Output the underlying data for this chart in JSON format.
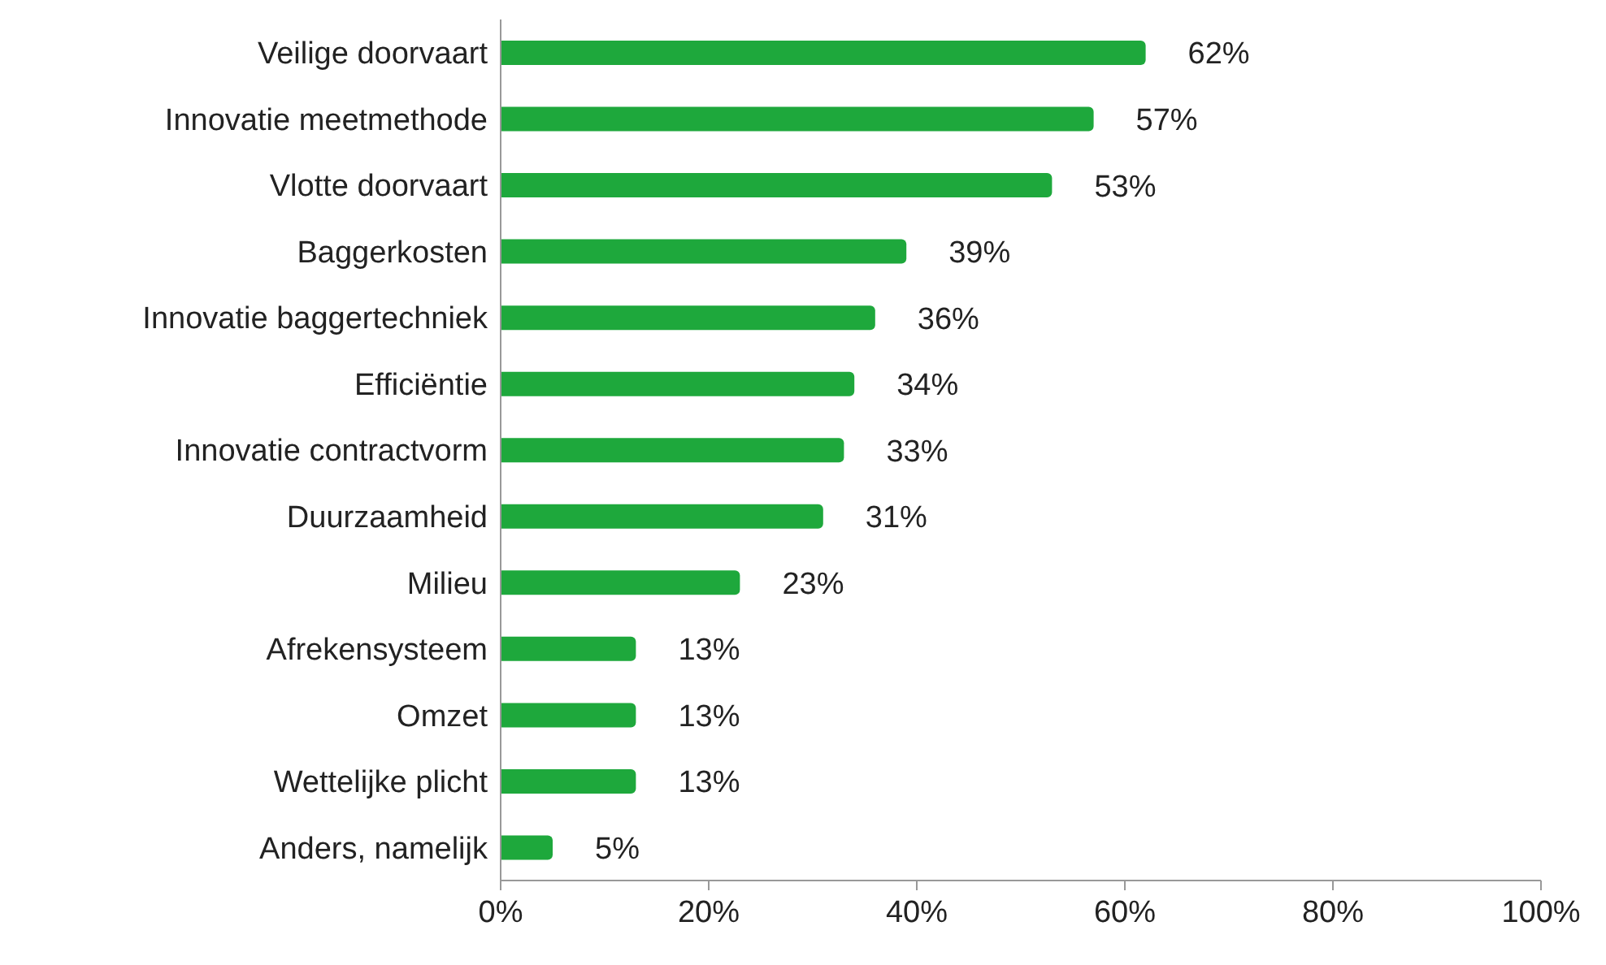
{
  "chart_data": {
    "type": "bar",
    "orientation": "horizontal",
    "categories": [
      "Veilige doorvaart",
      "Innovatie meetmethode",
      "Vlotte doorvaart",
      "Baggerkosten",
      "Innovatie baggertechniek",
      "Efficiëntie",
      "Innovatie contractvorm",
      "Duurzaamheid",
      "Milieu",
      "Afrekensysteem",
      "Omzet",
      "Wettelijke plicht",
      "Anders, namelijk"
    ],
    "values": [
      62,
      57,
      53,
      39,
      36,
      34,
      33,
      31,
      23,
      13,
      13,
      13,
      5
    ],
    "value_labels": [
      "62%",
      "57%",
      "53%",
      "39%",
      "36%",
      "34%",
      "33%",
      "31%",
      "23%",
      "13%",
      "13%",
      "13%",
      "5%"
    ],
    "color": "#1ea83c",
    "xlim": [
      0,
      100
    ],
    "xticks": [
      {
        "value": 0,
        "label": "0%"
      },
      {
        "value": 20,
        "label": "20%"
      },
      {
        "value": 40,
        "label": "40%"
      },
      {
        "value": 60,
        "label": "60%"
      },
      {
        "value": 80,
        "label": "80%"
      },
      {
        "value": 100,
        "label": "100%"
      }
    ],
    "grid": false,
    "legend": false
  }
}
